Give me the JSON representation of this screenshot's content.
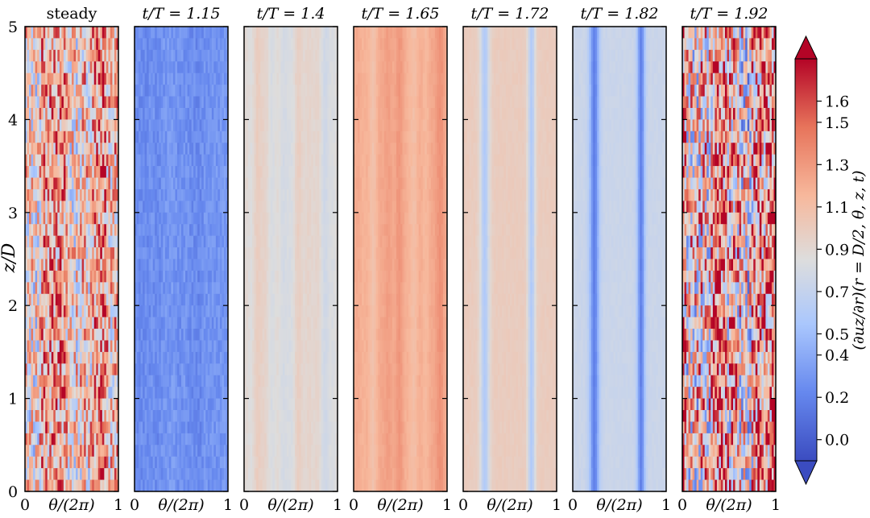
{
  "chart_data": {
    "type": "heatmap",
    "ylabel": "z/D",
    "xlabel": "θ/(2π)",
    "x_range": [
      0,
      1
    ],
    "y_range": [
      0,
      5
    ],
    "x_ticks": [
      "0",
      "1"
    ],
    "y_ticks": [
      "0",
      "1",
      "2",
      "3",
      "4",
      "5"
    ],
    "colorbar": {
      "label": "(∂u_z/∂r)(r = D/2, θ, z, t)",
      "label_text": "(∂uz/∂r)(r = D/2, θ, z, t)",
      "range": [
        -0.1,
        1.8
      ],
      "extend": "both",
      "ticks": [
        "0.0",
        "0.2",
        "0.4",
        "0.5",
        "0.7",
        "0.9",
        "1.1",
        "1.3",
        "1.5",
        "1.6"
      ],
      "tick_values": [
        0.0,
        0.2,
        0.4,
        0.5,
        0.7,
        0.9,
        1.1,
        1.3,
        1.5,
        1.6
      ],
      "colormap": "coolwarm",
      "colors": [
        "#3b4cc0",
        "#6688ee",
        "#aac7fd",
        "#dddddd",
        "#f7b89c",
        "#e7745b",
        "#b40426"
      ]
    },
    "panels": [
      {
        "title": "steady",
        "mean": 1.12,
        "amplitude": 0.55,
        "pattern": "turbulent"
      },
      {
        "title": "t/T = 1.15",
        "mean": 0.26,
        "amplitude": 0.1,
        "pattern": "mottled"
      },
      {
        "title": "t/T = 1.4",
        "mean": 0.88,
        "amplitude": 0.12,
        "pattern": "streaks"
      },
      {
        "title": "t/T = 1.65",
        "mean": 1.22,
        "amplitude": 0.12,
        "pattern": "streaks"
      },
      {
        "title": "t/T = 1.72",
        "mean": 0.85,
        "amplitude": 0.3,
        "pattern": "bands"
      },
      {
        "title": "t/T = 1.82",
        "mean": 0.58,
        "amplitude": 0.4,
        "pattern": "bands"
      },
      {
        "title": "t/T = 1.92",
        "mean": 1.15,
        "amplitude": 0.75,
        "pattern": "turbulent"
      }
    ]
  }
}
